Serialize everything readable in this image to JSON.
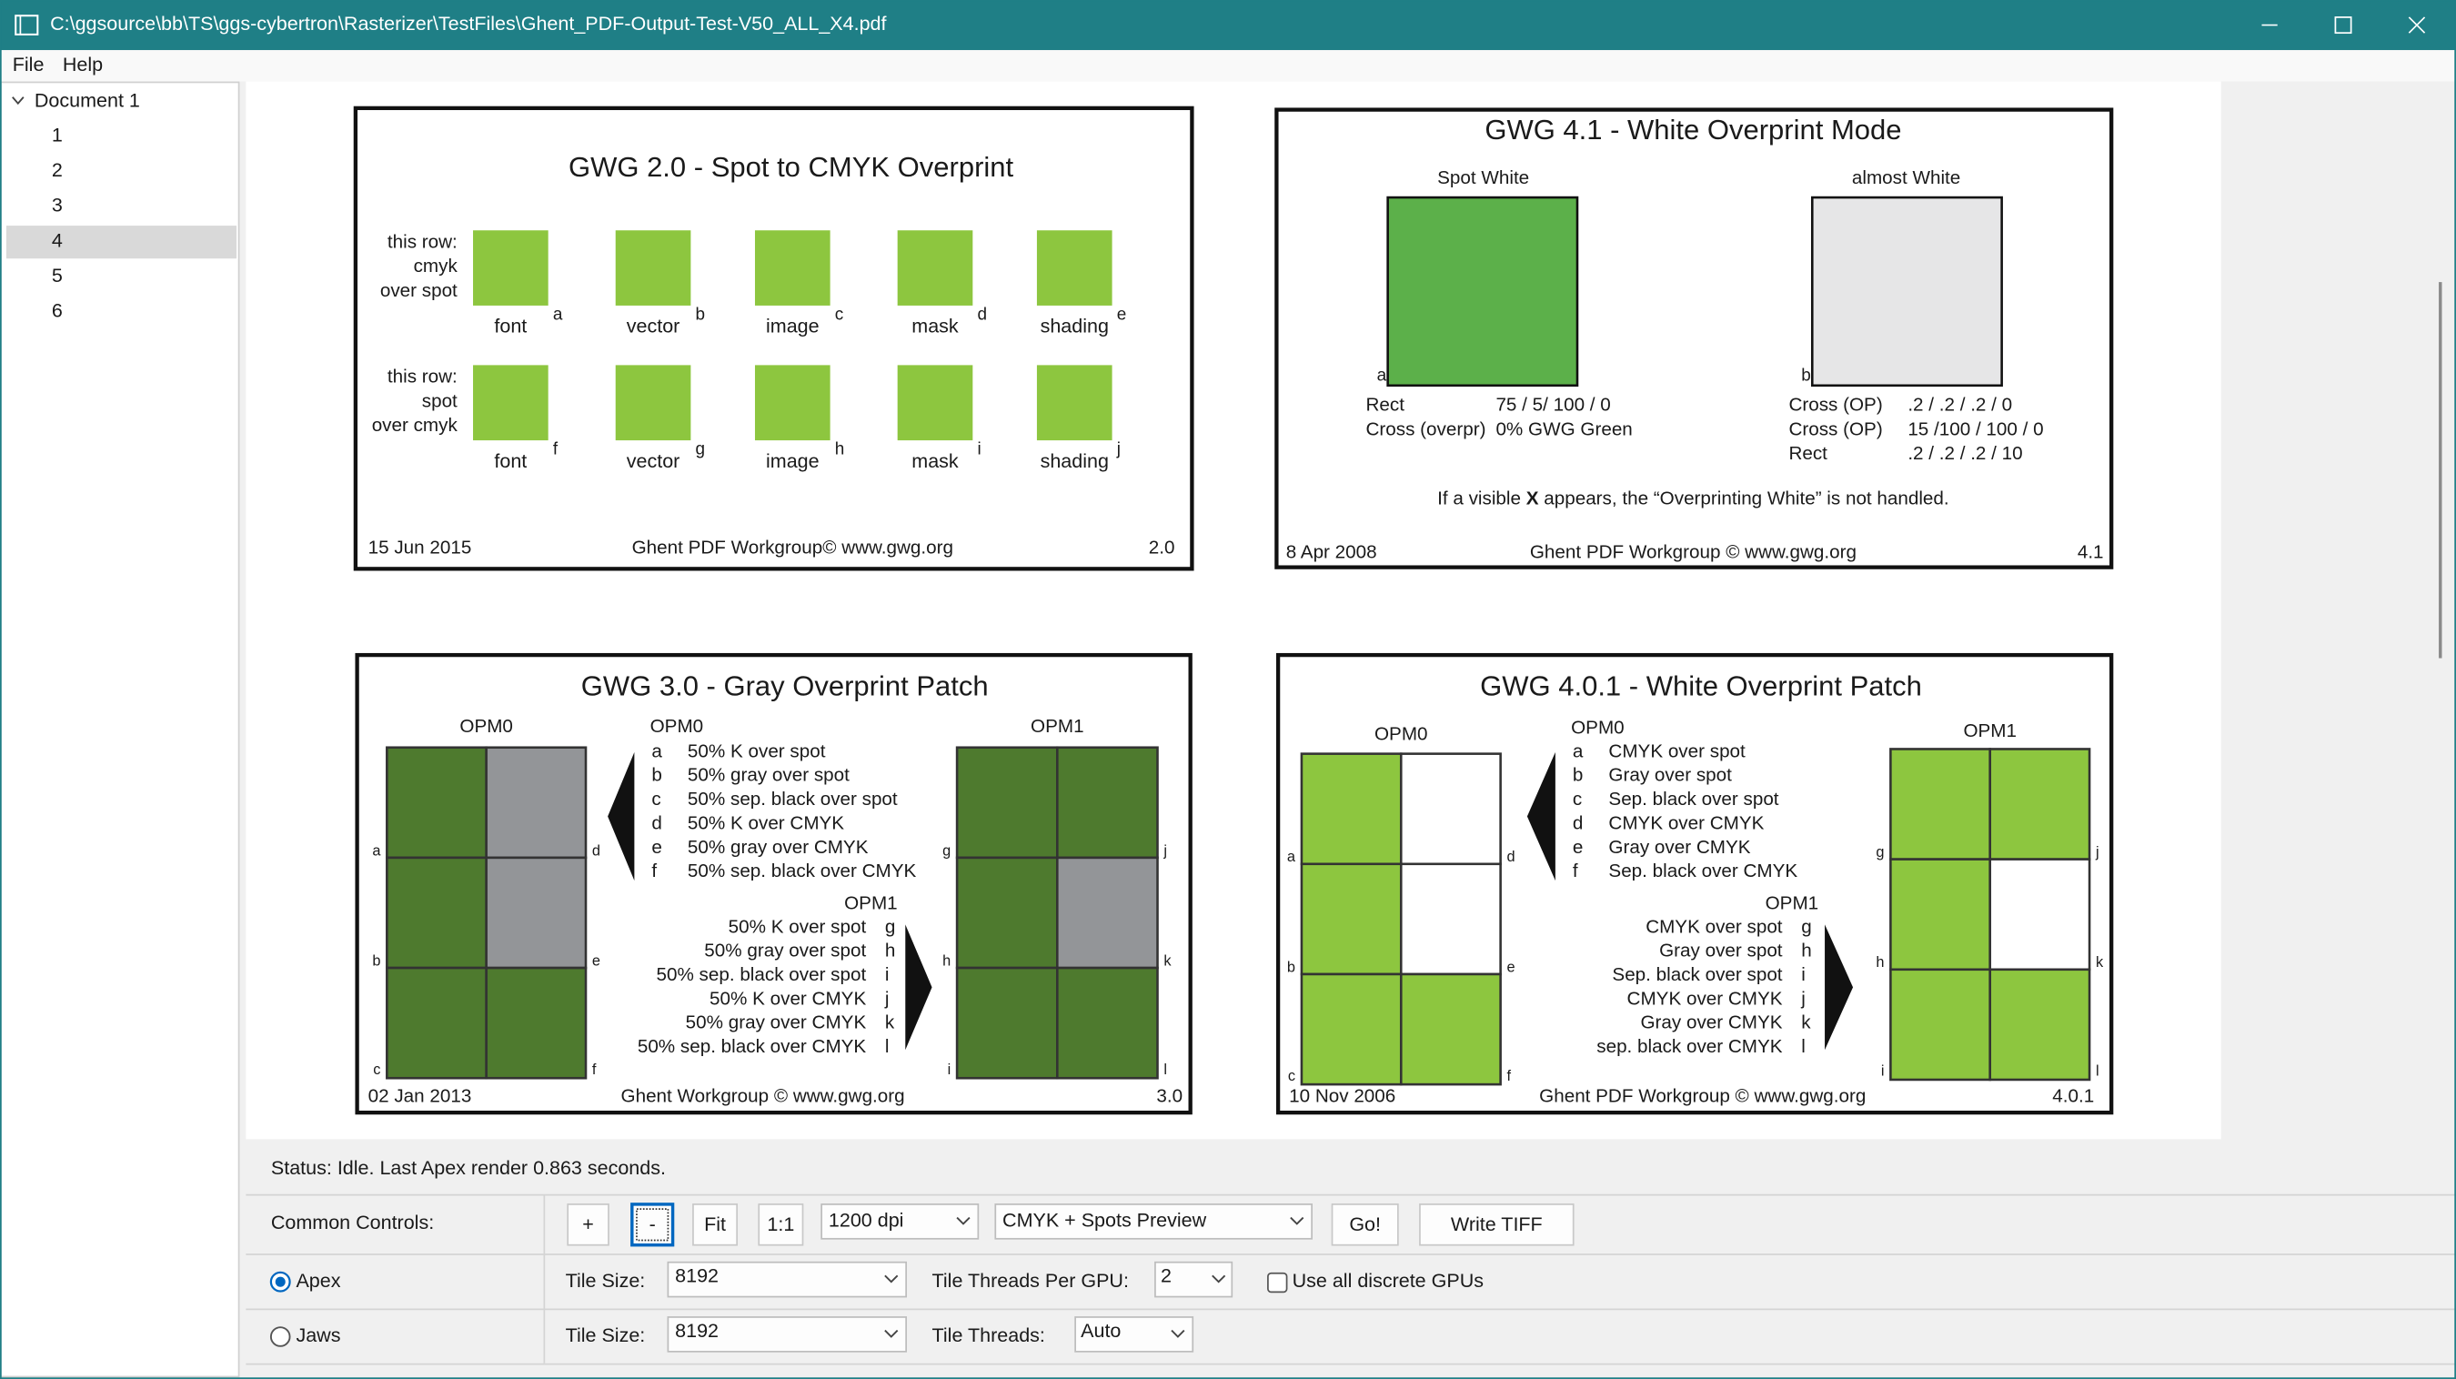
{
  "window": {
    "title": "C:\\ggsource\\bb\\TS\\ggs-cybertron\\Rasterizer\\TestFiles\\Ghent_PDF-Output-Test-V50_ALL_X4.pdf"
  },
  "menu": [
    "File",
    "Help"
  ],
  "tree": {
    "root": "Document 1",
    "pages": [
      "1",
      "2",
      "3",
      "4",
      "5",
      "6"
    ]
  },
  "pages": {
    "gwg20": {
      "title": "GWG 2.0 - Spot to CMYK Overprint",
      "rows": [
        {
          "label": [
            "this row:",
            "cmyk",
            "over spot"
          ],
          "patches": [
            {
              "name": "font",
              "letter": "a"
            },
            {
              "name": "vector",
              "letter": "b"
            },
            {
              "name": "image",
              "letter": "c"
            },
            {
              "name": "mask",
              "letter": "d"
            },
            {
              "name": "shading",
              "letter": "e"
            }
          ]
        },
        {
          "label": [
            "this row:",
            "spot",
            "over cmyk"
          ],
          "patches": [
            {
              "name": "font",
              "letter": "f"
            },
            {
              "name": "vector",
              "letter": "g"
            },
            {
              "name": "image",
              "letter": "h"
            },
            {
              "name": "mask",
              "letter": "i"
            },
            {
              "name": "shading",
              "letter": "j"
            }
          ]
        }
      ],
      "date": "15 Jun 2015",
      "footer": "Ghent PDF Workgroup© www.gwg.org",
      "version": "2.0"
    },
    "gwg41": {
      "title": "GWG 4.1 - White Overprint Mode",
      "left": {
        "heading": "Spot White",
        "letter": "a",
        "rows": [
          [
            "Rect",
            "75 / 5/ 100 / 0"
          ],
          [
            "Cross (overpr)",
            "0% GWG Green"
          ]
        ]
      },
      "right": {
        "heading": "almost White",
        "letter": "b",
        "rows": [
          [
            "Cross (OP)",
            ".2 / .2 / .2 / 0"
          ],
          [
            "Cross (OP)",
            "15 /100 / 100 / 0"
          ],
          [
            "Rect",
            ".2 / .2 / .2 / 10"
          ]
        ]
      },
      "note": [
        "If a visible ",
        "X",
        " appears, the “Overprinting White” is not handled."
      ],
      "date": "8 Apr 2008",
      "footer": "Ghent PDF Workgroup © www.gwg.org",
      "version": "4.1"
    },
    "gwg30": {
      "title": "GWG 3.0 - Gray Overprint Patch",
      "grid_left": "OPM0",
      "grid_right": "OPM1",
      "opm0": {
        "header": "OPM0",
        "items": [
          {
            "letter": "a",
            "text": "50% K over spot"
          },
          {
            "letter": "b",
            "text": "50% gray over spot"
          },
          {
            "letter": "c",
            "text": "50% sep. black over spot"
          },
          {
            "letter": "d",
            "text": "50% K over CMYK"
          },
          {
            "letter": "e",
            "text": "50% gray over CMYK"
          },
          {
            "letter": "f",
            "text": "50% sep. black over CMYK"
          }
        ]
      },
      "opm1": {
        "header": "OPM1",
        "items": [
          {
            "letter": "g",
            "text": "50% K over spot"
          },
          {
            "letter": "h",
            "text": "50% gray over spot"
          },
          {
            "letter": "i",
            "text": "50% sep. black over spot"
          },
          {
            "letter": "j",
            "text": "50% K over CMYK"
          },
          {
            "letter": "k",
            "text": "50% gray over CMYK"
          },
          {
            "letter": "l",
            "text": "50% sep. black over CMYK"
          }
        ]
      },
      "date": "02 Jan 2013",
      "footer": "Ghent  Workgroup © www.gwg.org",
      "version": "3.0"
    },
    "gwg401": {
      "title": "GWG 4.0.1 - White Overprint Patch",
      "grid_left": "OPM0",
      "grid_right": "OPM1",
      "opm0": {
        "header": "OPM0",
        "items": [
          {
            "letter": "a",
            "text": "CMYK over spot"
          },
          {
            "letter": "b",
            "text": "Gray over spot"
          },
          {
            "letter": "c",
            "text": "Sep. black over spot"
          },
          {
            "letter": "d",
            "text": "CMYK over CMYK"
          },
          {
            "letter": "e",
            "text": "Gray over CMYK"
          },
          {
            "letter": "f",
            "text": "Sep. black over CMYK"
          }
        ]
      },
      "opm1": {
        "header": "OPM1",
        "items": [
          {
            "letter": "g",
            "text": "CMYK over spot"
          },
          {
            "letter": "h",
            "text": "Gray over spot"
          },
          {
            "letter": "i",
            "text": "Sep. black over spot"
          },
          {
            "letter": "j",
            "text": "CMYK over CMYK"
          },
          {
            "letter": "k",
            "text": "Gray over CMYK"
          },
          {
            "letter": "l",
            "text": "sep. black over CMYK"
          }
        ]
      },
      "date": "10 Nov 2006",
      "footer": "Ghent PDF Workgroup ©  www.gwg.org",
      "version": "4.0.1"
    }
  },
  "status": "Status: Idle. Last Apex render 0.863 seconds.",
  "controls": {
    "common": {
      "label": "Common Controls:",
      "zoom_in": "+",
      "zoom_out": "-",
      "fit": "Fit",
      "actual": "1:1",
      "dpi": "1200 dpi",
      "preview": "CMYK + Spots Preview",
      "go": "Go!",
      "write": "Write TIFF"
    },
    "apex": {
      "label": "Apex",
      "tile_size_label": "Tile Size:",
      "tile_size": "8192",
      "threads_label": "Tile Threads Per GPU:",
      "threads": "2",
      "gpus": "Use all discrete GPUs"
    },
    "jaws": {
      "label": "Jaws",
      "tile_size_label": "Tile Size:",
      "tile_size": "8192",
      "threads_label": "Tile Threads:",
      "threads": "Auto"
    }
  }
}
